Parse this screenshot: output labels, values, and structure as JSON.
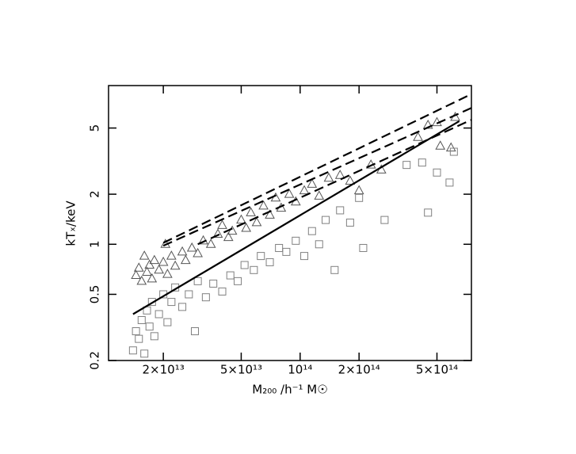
{
  "chart_data": {
    "type": "scatter",
    "xlabel": "M₂₀₀ /h⁻¹ M☉",
    "ylabel": "kTₓ/keV",
    "xscale": "log",
    "yscale": "log",
    "xlim": [
      10500000000000.0,
      750000000000000.0
    ],
    "ylim": [
      0.2,
      9
    ],
    "xticks": [
      {
        "value": 20000000000000.0,
        "label": "2×10¹³"
      },
      {
        "value": 50000000000000.0,
        "label": "5×10¹³"
      },
      {
        "value": 100000000000000.0,
        "label": "10¹⁴"
      },
      {
        "value": 200000000000000.0,
        "label": "2×10¹⁴"
      },
      {
        "value": 500000000000000.0,
        "label": "5×10¹⁴"
      }
    ],
    "yticks": [
      0.2,
      0.5,
      1,
      2,
      5
    ],
    "series": [
      {
        "marker": "triangle",
        "color": "#555555",
        "x": [
          14500000000000.0,
          15000000000000.0,
          15500000000000.0,
          16000000000000.0,
          16500000000000.0,
          17000000000000.0,
          17500000000000.0,
          18000000000000.0,
          19000000000000.0,
          20000000000000.0,
          20500000000000.0,
          21000000000000.0,
          22000000000000.0,
          23000000000000.0,
          25000000000000.0,
          26000000000000.0,
          28000000000000.0,
          30000000000000.0,
          32000000000000.0,
          35000000000000.0,
          38000000000000.0,
          40000000000000.0,
          43000000000000.0,
          45000000000000.0,
          50000000000000.0,
          53000000000000.0,
          56000000000000.0,
          60000000000000.0,
          65000000000000.0,
          70000000000000.0,
          75000000000000.0,
          80000000000000.0,
          88000000000000.0,
          95000000000000.0,
          105000000000000.0,
          115000000000000.0,
          125000000000000.0,
          140000000000000.0,
          160000000000000.0,
          180000000000000.0,
          200000000000000.0,
          230000000000000.0,
          260000000000000.0,
          400000000000000.0,
          450000000000000.0,
          500000000000000.0,
          520000000000000.0,
          620000000000000.0,
          590000000000000.0
        ],
        "values": [
          0.65,
          0.72,
          0.6,
          0.85,
          0.68,
          0.75,
          0.62,
          0.8,
          0.7,
          0.78,
          1.0,
          0.66,
          0.85,
          0.74,
          0.9,
          0.8,
          0.95,
          0.88,
          1.05,
          1.0,
          1.15,
          1.3,
          1.1,
          1.2,
          1.4,
          1.25,
          1.55,
          1.35,
          1.7,
          1.5,
          1.9,
          1.65,
          2.0,
          1.8,
          2.1,
          2.3,
          1.95,
          2.5,
          2.6,
          2.4,
          2.1,
          3.0,
          2.8,
          4.4,
          5.2,
          5.4,
          3.9,
          5.8,
          3.8
        ]
      },
      {
        "marker": "square",
        "color": "#808080",
        "x": [
          14000000000000.0,
          14500000000000.0,
          15000000000000.0,
          15500000000000.0,
          16000000000000.0,
          16500000000000.0,
          17000000000000.0,
          17500000000000.0,
          18000000000000.0,
          19000000000000.0,
          20000000000000.0,
          21000000000000.0,
          22000000000000.0,
          23000000000000.0,
          25000000000000.0,
          27000000000000.0,
          29000000000000.0,
          30000000000000.0,
          33000000000000.0,
          36000000000000.0,
          40000000000000.0,
          44000000000000.0,
          48000000000000.0,
          52000000000000.0,
          58000000000000.0,
          63000000000000.0,
          70000000000000.0,
          78000000000000.0,
          85000000000000.0,
          95000000000000.0,
          105000000000000.0,
          115000000000000.0,
          125000000000000.0,
          135000000000000.0,
          150000000000000.0,
          160000000000000.0,
          180000000000000.0,
          200000000000000.0,
          210000000000000.0,
          270000000000000.0,
          350000000000000.0,
          420000000000000.0,
          450000000000000.0,
          500000000000000.0,
          580000000000000.0,
          610000000000000.0
        ],
        "values": [
          0.23,
          0.3,
          0.27,
          0.35,
          0.22,
          0.4,
          0.32,
          0.45,
          0.28,
          0.38,
          0.5,
          0.34,
          0.45,
          0.55,
          0.42,
          0.5,
          0.3,
          0.6,
          0.48,
          0.58,
          0.52,
          0.65,
          0.6,
          0.75,
          0.7,
          0.85,
          0.78,
          0.95,
          0.9,
          1.05,
          0.85,
          1.2,
          1.0,
          1.4,
          0.7,
          1.6,
          1.35,
          1.9,
          0.95,
          1.4,
          3.0,
          3.1,
          1.55,
          2.7,
          2.35,
          3.6
        ]
      },
      {
        "marker": "line",
        "style": "solid",
        "color": "#000000",
        "x": [
          14000000000000.0,
          650000000000000.0
        ],
        "values": [
          0.38,
          5.5
        ]
      },
      {
        "marker": "line",
        "style": "dashed",
        "color": "#000000",
        "x": [
          20000000000000.0,
          750000000000000.0
        ],
        "values": [
          1.02,
          8.0
        ]
      },
      {
        "marker": "line",
        "style": "dashed",
        "color": "#000000",
        "x": [
          20000000000000.0,
          750000000000000.0
        ],
        "values": [
          0.98,
          6.6
        ]
      },
      {
        "marker": "line",
        "style": "dashed",
        "color": "#000000",
        "x": [
          30000000000000.0,
          750000000000000.0
        ],
        "values": [
          1.0,
          5.6
        ]
      }
    ]
  }
}
